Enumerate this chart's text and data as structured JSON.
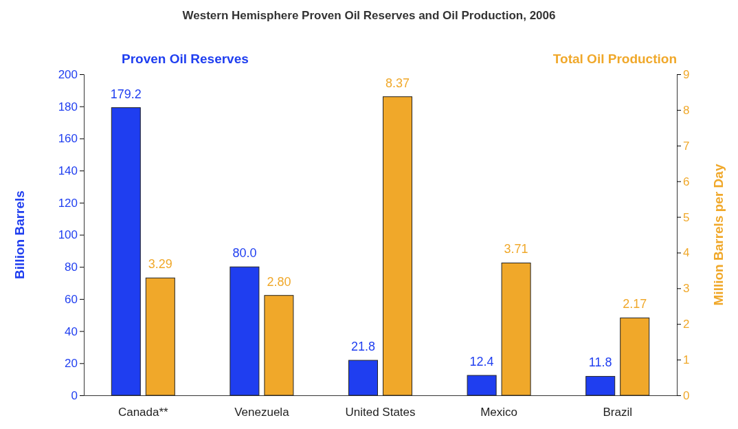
{
  "chart_data": {
    "type": "bar",
    "title": "Western Hemisphere Proven Oil Reserves and Oil Production, 2006",
    "categories": [
      "Canada**",
      "Venezuela",
      "United States",
      "Mexico",
      "Brazil"
    ],
    "series": [
      {
        "name": "Proven Oil Reserves",
        "color": "#1f3ef0",
        "values": [
          179.2,
          80.0,
          21.8,
          12.4,
          11.8
        ],
        "value_labels": [
          "179.2",
          "80.0",
          "21.8",
          "12.4",
          "11.8"
        ]
      },
      {
        "name": "Total Oil Production",
        "color": "#f0a82a",
        "axis": "y2",
        "values": [
          3.29,
          2.8,
          8.37,
          3.71,
          2.17
        ],
        "value_labels": [
          "3.29",
          "2.80",
          "8.37",
          "3.71",
          "2.17"
        ]
      }
    ],
    "ylabel": "Billion Barrels",
    "y2label": "Million Barrels per Day",
    "ylim": [
      0,
      200
    ],
    "yticks": [
      0,
      20,
      40,
      60,
      80,
      100,
      120,
      140,
      160,
      180,
      200
    ],
    "y2lim": [
      0,
      9
    ],
    "y2ticks": [
      0,
      1,
      2,
      3,
      4,
      5,
      6,
      7,
      8,
      9
    ],
    "grid": false,
    "legend": false
  }
}
